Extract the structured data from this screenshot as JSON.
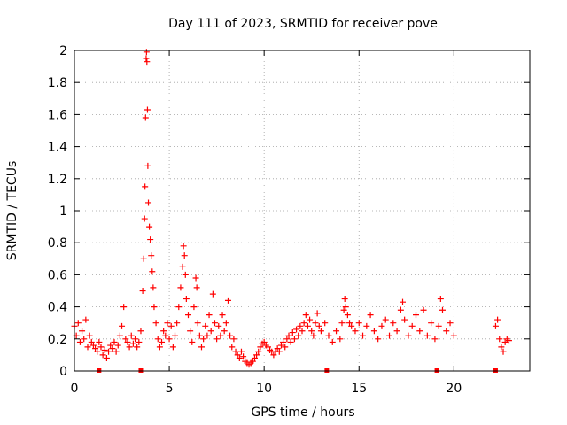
{
  "chart_data": {
    "type": "scatter",
    "title": "Day 111 of 2023, SRMTID for receiver pove",
    "xlabel": "GPS time / hours",
    "ylabel": "SRMTID / TECUs",
    "xlim": [
      0,
      24
    ],
    "ylim": [
      0,
      2
    ],
    "x_ticks": [
      0,
      5,
      10,
      15,
      20
    ],
    "x_tick_labels": [
      "0",
      "5",
      "10",
      "15",
      "20"
    ],
    "y_ticks": [
      0,
      0.2,
      0.4,
      0.6,
      0.8,
      1,
      1.2,
      1.4,
      1.6,
      1.8,
      2
    ],
    "y_tick_labels": [
      "0",
      "0.2",
      "0.4",
      "0.6",
      "0.8",
      "1",
      "1.2",
      "1.4",
      "1.6",
      "1.8",
      "2"
    ],
    "grid": true,
    "marker": "plus",
    "color": "#ff0000",
    "series": [
      {
        "name": "SRMTID",
        "points": [
          [
            0.0,
            0.28
          ],
          [
            0.1,
            0.22
          ],
          [
            0.2,
            0.3
          ],
          [
            0.3,
            0.18
          ],
          [
            0.4,
            0.25
          ],
          [
            0.5,
            0.2
          ],
          [
            0.6,
            0.32
          ],
          [
            0.7,
            0.15
          ],
          [
            0.8,
            0.22
          ],
          [
            0.9,
            0.18
          ],
          [
            1.0,
            0.16
          ],
          [
            1.1,
            0.14
          ],
          [
            1.2,
            0.12
          ],
          [
            1.3,
            0.18
          ],
          [
            1.4,
            0.15
          ],
          [
            1.5,
            0.1
          ],
          [
            1.6,
            0.13
          ],
          [
            1.7,
            0.08
          ],
          [
            1.8,
            0.12
          ],
          [
            1.9,
            0.16
          ],
          [
            2.0,
            0.14
          ],
          [
            2.1,
            0.18
          ],
          [
            2.2,
            0.12
          ],
          [
            2.3,
            0.16
          ],
          [
            2.4,
            0.22
          ],
          [
            2.5,
            0.28
          ],
          [
            2.6,
            0.4
          ],
          [
            2.7,
            0.2
          ],
          [
            2.8,
            0.18
          ],
          [
            2.9,
            0.15
          ],
          [
            3.0,
            0.22
          ],
          [
            3.1,
            0.17
          ],
          [
            3.2,
            0.2
          ],
          [
            3.3,
            0.15
          ],
          [
            3.4,
            0.18
          ],
          [
            3.5,
            0.25
          ],
          [
            3.6,
            0.5
          ],
          [
            3.65,
            0.7
          ],
          [
            3.7,
            0.95
          ],
          [
            3.72,
            1.15
          ],
          [
            3.75,
            1.58
          ],
          [
            3.78,
            1.95
          ],
          [
            3.8,
            1.99
          ],
          [
            3.82,
            1.93
          ],
          [
            3.85,
            1.63
          ],
          [
            3.87,
            1.28
          ],
          [
            3.9,
            1.05
          ],
          [
            3.95,
            0.9
          ],
          [
            4.0,
            0.82
          ],
          [
            4.05,
            0.72
          ],
          [
            4.1,
            0.62
          ],
          [
            4.15,
            0.52
          ],
          [
            4.2,
            0.4
          ],
          [
            4.3,
            0.3
          ],
          [
            4.4,
            0.2
          ],
          [
            4.5,
            0.15
          ],
          [
            4.6,
            0.18
          ],
          [
            4.7,
            0.25
          ],
          [
            4.8,
            0.22
          ],
          [
            4.9,
            0.3
          ],
          [
            5.0,
            0.2
          ],
          [
            5.1,
            0.28
          ],
          [
            5.2,
            0.15
          ],
          [
            5.3,
            0.22
          ],
          [
            5.4,
            0.3
          ],
          [
            5.5,
            0.4
          ],
          [
            5.6,
            0.52
          ],
          [
            5.7,
            0.65
          ],
          [
            5.75,
            0.78
          ],
          [
            5.8,
            0.72
          ],
          [
            5.85,
            0.6
          ],
          [
            5.9,
            0.45
          ],
          [
            6.0,
            0.35
          ],
          [
            6.1,
            0.25
          ],
          [
            6.2,
            0.18
          ],
          [
            6.3,
            0.4
          ],
          [
            6.4,
            0.58
          ],
          [
            6.45,
            0.52
          ],
          [
            6.5,
            0.3
          ],
          [
            6.6,
            0.22
          ],
          [
            6.7,
            0.15
          ],
          [
            6.8,
            0.2
          ],
          [
            6.9,
            0.28
          ],
          [
            7.0,
            0.22
          ],
          [
            7.1,
            0.35
          ],
          [
            7.2,
            0.25
          ],
          [
            7.3,
            0.48
          ],
          [
            7.4,
            0.3
          ],
          [
            7.5,
            0.2
          ],
          [
            7.6,
            0.28
          ],
          [
            7.7,
            0.22
          ],
          [
            7.8,
            0.35
          ],
          [
            7.9,
            0.25
          ],
          [
            8.0,
            0.3
          ],
          [
            8.1,
            0.44
          ],
          [
            8.2,
            0.22
          ],
          [
            8.3,
            0.15
          ],
          [
            8.4,
            0.2
          ],
          [
            8.5,
            0.12
          ],
          [
            8.6,
            0.1
          ],
          [
            8.7,
            0.08
          ],
          [
            8.8,
            0.12
          ],
          [
            8.9,
            0.09
          ],
          [
            9.0,
            0.06
          ],
          [
            9.1,
            0.05
          ],
          [
            9.2,
            0.04
          ],
          [
            9.3,
            0.05
          ],
          [
            9.4,
            0.06
          ],
          [
            9.5,
            0.08
          ],
          [
            9.6,
            0.1
          ],
          [
            9.7,
            0.12
          ],
          [
            9.8,
            0.15
          ],
          [
            9.9,
            0.17
          ],
          [
            10.0,
            0.18
          ],
          [
            10.1,
            0.16
          ],
          [
            10.2,
            0.15
          ],
          [
            10.3,
            0.13
          ],
          [
            10.4,
            0.12
          ],
          [
            10.5,
            0.1
          ],
          [
            10.6,
            0.12
          ],
          [
            10.7,
            0.14
          ],
          [
            10.8,
            0.12
          ],
          [
            10.9,
            0.16
          ],
          [
            11.0,
            0.18
          ],
          [
            11.1,
            0.15
          ],
          [
            11.2,
            0.2
          ],
          [
            11.3,
            0.22
          ],
          [
            11.4,
            0.18
          ],
          [
            11.5,
            0.24
          ],
          [
            11.6,
            0.2
          ],
          [
            11.7,
            0.26
          ],
          [
            11.8,
            0.22
          ],
          [
            11.9,
            0.28
          ],
          [
            12.0,
            0.25
          ],
          [
            12.1,
            0.3
          ],
          [
            12.2,
            0.35
          ],
          [
            12.3,
            0.28
          ],
          [
            12.4,
            0.32
          ],
          [
            12.5,
            0.25
          ],
          [
            12.6,
            0.22
          ],
          [
            12.7,
            0.3
          ],
          [
            12.8,
            0.36
          ],
          [
            12.9,
            0.28
          ],
          [
            13.0,
            0.25
          ],
          [
            13.2,
            0.3
          ],
          [
            13.4,
            0.22
          ],
          [
            13.6,
            0.18
          ],
          [
            13.8,
            0.25
          ],
          [
            14.0,
            0.2
          ],
          [
            14.1,
            0.3
          ],
          [
            14.2,
            0.38
          ],
          [
            14.25,
            0.45
          ],
          [
            14.3,
            0.4
          ],
          [
            14.4,
            0.35
          ],
          [
            14.5,
            0.3
          ],
          [
            14.6,
            0.28
          ],
          [
            14.8,
            0.25
          ],
          [
            15.0,
            0.3
          ],
          [
            15.2,
            0.22
          ],
          [
            15.4,
            0.28
          ],
          [
            15.6,
            0.35
          ],
          [
            15.8,
            0.25
          ],
          [
            16.0,
            0.2
          ],
          [
            16.2,
            0.28
          ],
          [
            16.4,
            0.32
          ],
          [
            16.6,
            0.22
          ],
          [
            16.8,
            0.3
          ],
          [
            17.0,
            0.25
          ],
          [
            17.2,
            0.38
          ],
          [
            17.3,
            0.43
          ],
          [
            17.4,
            0.32
          ],
          [
            17.6,
            0.22
          ],
          [
            17.8,
            0.28
          ],
          [
            18.0,
            0.35
          ],
          [
            18.2,
            0.25
          ],
          [
            18.4,
            0.38
          ],
          [
            18.6,
            0.22
          ],
          [
            18.8,
            0.3
          ],
          [
            19.0,
            0.2
          ],
          [
            19.2,
            0.28
          ],
          [
            19.3,
            0.45
          ],
          [
            19.4,
            0.38
          ],
          [
            19.6,
            0.25
          ],
          [
            19.8,
            0.3
          ],
          [
            20.0,
            0.22
          ],
          [
            22.2,
            0.28
          ],
          [
            22.3,
            0.32
          ],
          [
            22.4,
            0.2
          ],
          [
            22.5,
            0.15
          ],
          [
            22.6,
            0.12
          ],
          [
            22.7,
            0.18
          ],
          [
            22.8,
            0.2
          ],
          [
            22.9,
            0.19
          ]
        ]
      }
    ],
    "axis_markers": [
      1.3,
      3.5,
      13.3,
      19.1,
      22.2
    ]
  }
}
